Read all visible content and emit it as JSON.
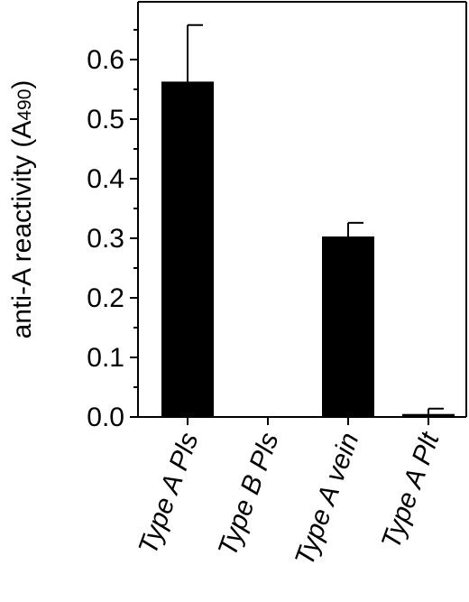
{
  "chart_data": {
    "type": "bar",
    "title": "",
    "xlabel": "",
    "ylabel": "anti-A reactivity (A",
    "ylabel_subscript": "490",
    "ylabel_close": ")",
    "categories": [
      "Type A Pls",
      "Type B Pls",
      "Type A vein",
      "Type A Plt"
    ],
    "values": [
      0.563,
      0.0,
      0.303,
      0.005
    ],
    "errors": [
      0.095,
      0.0,
      0.023,
      0.009
    ],
    "ylim": [
      0.0,
      0.7
    ],
    "yticks": [
      0.0,
      0.1,
      0.2,
      0.3,
      0.4,
      0.5,
      0.6
    ],
    "ytick_labels": [
      "0.0",
      "0.1",
      "0.2",
      "0.3",
      "0.4",
      "0.5",
      "0.6"
    ],
    "grid": false,
    "bar_color": "#000000"
  }
}
